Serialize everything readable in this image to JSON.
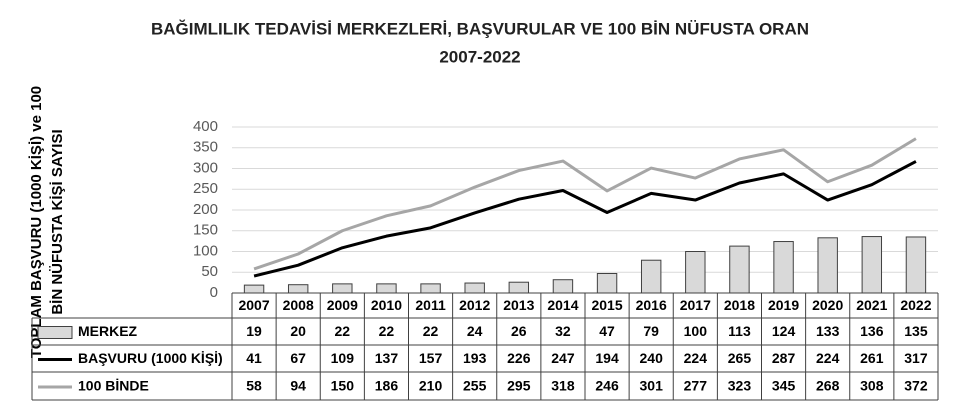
{
  "chart_data": {
    "type": "bar-line-table",
    "title": "BAĞIMLILIK TEDAVİSİ MERKEZLERİ, BAŞVURULAR VE 100 BİN NÜFUSTA ORAN",
    "subtitle": "2007-2022",
    "ylabel": [
      "TOPLAM BAŞVURU (1000 KİŞİ) ve 100",
      "BİN NÜFUSTA KİŞİ SAYISI"
    ],
    "categories": [
      "2007",
      "2008",
      "2009",
      "2010",
      "2011",
      "2012",
      "2013",
      "2014",
      "2015",
      "2016",
      "2017",
      "2018",
      "2019",
      "2020",
      "2021",
      "2022"
    ],
    "ylim": [
      0,
      400
    ],
    "yticks": [
      0,
      50,
      100,
      150,
      200,
      250,
      300,
      350,
      400
    ],
    "grid": true,
    "series": [
      {
        "name": "MERKEZ",
        "type": "bar",
        "color": "#d9d9d9",
        "values": [
          19,
          20,
          22,
          22,
          22,
          24,
          26,
          32,
          47,
          79,
          100,
          113,
          124,
          133,
          136,
          135
        ]
      },
      {
        "name": "BAŞVURU (1000 KİŞİ)",
        "type": "line",
        "color": "#000000",
        "values": [
          41,
          67,
          109,
          137,
          157,
          193,
          226,
          247,
          194,
          240,
          224,
          265,
          287,
          224,
          261,
          317
        ]
      },
      {
        "name": "100 BİNDE",
        "type": "line",
        "color": "#a6a6a6",
        "values": [
          58,
          94,
          150,
          186,
          210,
          255,
          295,
          318,
          246,
          301,
          277,
          323,
          345,
          268,
          308,
          372
        ]
      }
    ]
  }
}
